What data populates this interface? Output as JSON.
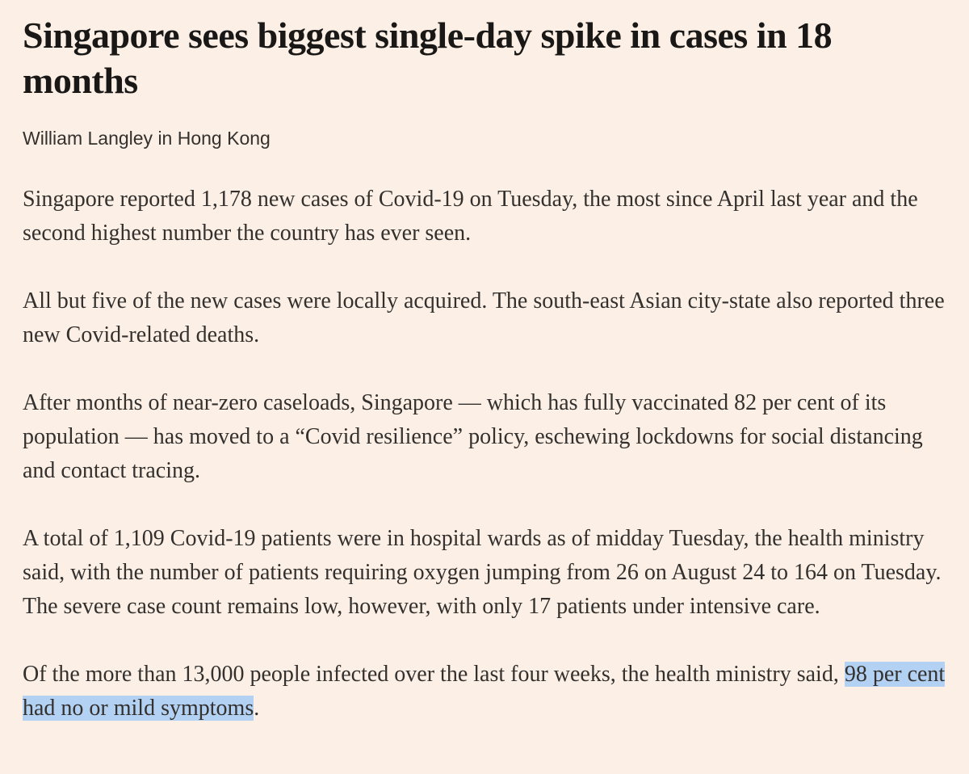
{
  "article": {
    "headline": "Singapore sees biggest single-day spike in cases in 18 months",
    "byline": "William Langley in Hong Kong",
    "paragraphs": [
      "Singapore reported 1,178 new cases of Covid-19 on Tuesday, the most since April last year and the second highest number the country has ever seen.",
      "All but five of the new cases were locally acquired. The south-east Asian city-state also reported three new Covid-related deaths.",
      "After months of near-zero caseloads, Singapore — which has fully vaccinated 82 per cent of its population — has moved to a “Covid resilience” policy, eschewing lockdowns for social distancing and contact tracing.",
      "A total of 1,109 Covid-19 patients were in hospital wards as of midday Tuesday, the health ministry said, with the number of patients requiring oxygen jumping from 26 on August 24 to 164 on Tuesday. The severe case count remains low, however, with only 17 patients under intensive care."
    ],
    "last_paragraph": {
      "before": "Of the more than 13,000 people infected over the last four weeks, the health ministry said, ",
      "highlighted": "98 per cent had no or mild symptoms",
      "after": "."
    }
  },
  "colors": {
    "background": "#fcf0e6",
    "text": "#33302e",
    "highlight": "#b3d1f2"
  }
}
